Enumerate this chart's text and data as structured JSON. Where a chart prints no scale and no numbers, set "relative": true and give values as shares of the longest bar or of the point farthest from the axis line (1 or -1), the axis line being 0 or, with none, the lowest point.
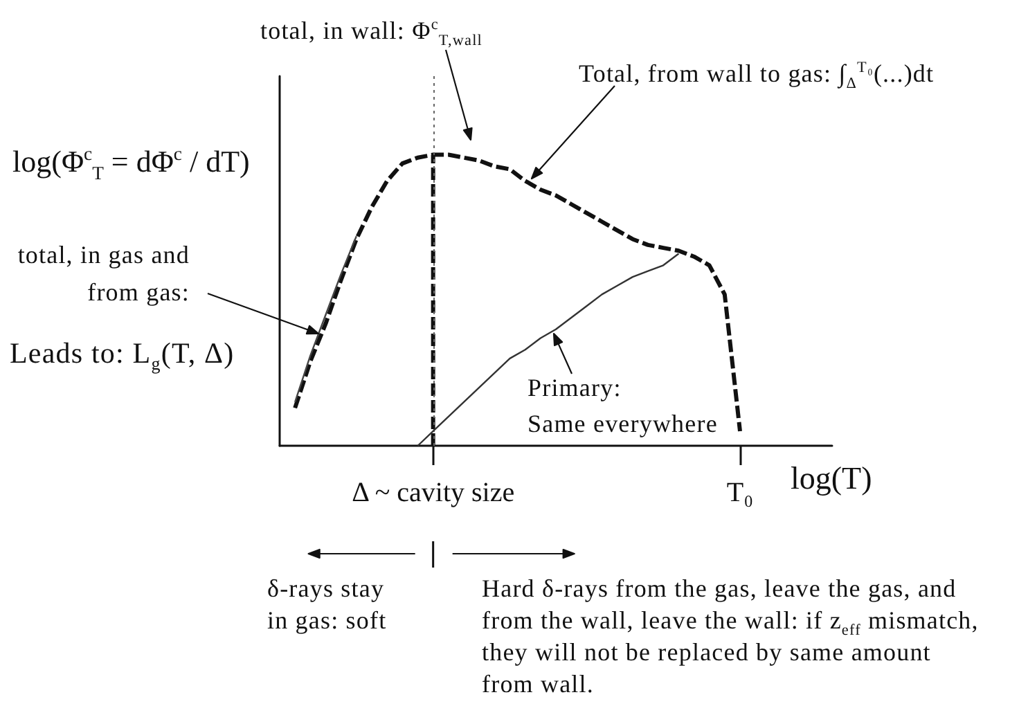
{
  "chart_data": {
    "type": "line",
    "relative": true,
    "xlabel": "log(T)",
    "ylabel": "log(Φ$^{c}$$_{T}$ = dΦ$^{c}$ / dT)",
    "categories": [
      null,
      null,
      null,
      null,
      null,
      null,
      null,
      null,
      null,
      null,
      "Δ ~ cavity size",
      null,
      null,
      null,
      null,
      null,
      null,
      null,
      null,
      null,
      null,
      null,
      null,
      null,
      null,
      null,
      null,
      null,
      null,
      null,
      "T₀",
      null,
      null,
      null,
      null,
      null,
      null
    ],
    "tick_labels": "x",
    "series": [
      {
        "color": "#111111",
        "line_style": "dashed",
        "values": [
          null,
          0.13,
          0.29,
          0.42,
          0.57,
          0.71,
          0.82,
          0.91,
          0.97,
          0.99,
          1,
          1,
          0.99,
          0.98,
          0.96,
          0.95,
          0.91,
          0.88,
          0.86,
          0.83,
          0.8,
          0.77,
          0.74,
          0.71,
          0.69,
          0.68,
          0.67,
          0.65,
          0.62,
          0.52,
          0.05,
          null,
          null,
          null,
          null,
          null,
          null
        ]
      },
      {
        "color": "#111111",
        "line_style": "dashed",
        "x": [
          "Δ ~ cavity size",
          "Δ ~ cavity size"
        ],
        "values": [
          0,
          1
        ]
      },
      {
        "color": "#444444",
        "line_style": "solid",
        "values": [
          null,
          0.15,
          0.31,
          0.45,
          0.59,
          0.72,
          null,
          null,
          null,
          null,
          null,
          null,
          null,
          null,
          null,
          null,
          null,
          null,
          null,
          null,
          null,
          null,
          null,
          null,
          null,
          null,
          null,
          null,
          null,
          null,
          null,
          null,
          null,
          null,
          null,
          null,
          null
        ]
      },
      {
        "color": "#333333",
        "line_style": "solid",
        "values": [
          null,
          null,
          null,
          null,
          null,
          null,
          null,
          null,
          null,
          0,
          0.05,
          0.1,
          0.15,
          0.2,
          0.25,
          0.3,
          0.33,
          0.37,
          0.4,
          0.44,
          0.48,
          0.52,
          0.55,
          0.58,
          0.6,
          0.62,
          0.66,
          null,
          null,
          null,
          null,
          null,
          null,
          null,
          null,
          null,
          null
        ]
      }
    ],
    "ref_lines": [
      {
        "axis": "x",
        "value": "Δ ~ cavity size",
        "line_style": "dotted",
        "color": "#666666"
      }
    ],
    "annotations": [
      "total, in wall: Φ$^{c}$$_{T,wall}$",
      "Total, from wall to gas: ∫$_{Δ}$$^{T₀}$(...)dt",
      "total, in gas and\nfrom gas:",
      "Leads to: L$_{g}$(T, Δ)",
      "Primary:\nSame everywhere",
      "δ-rays stay\nin gas: soft",
      "Hard δ-rays from the gas, leave the gas, and\nfrom the wall, leave the wall: if z$_{eff}$ mismatch,\nthey will not be replaced by same amount\nfrom wall."
    ]
  }
}
